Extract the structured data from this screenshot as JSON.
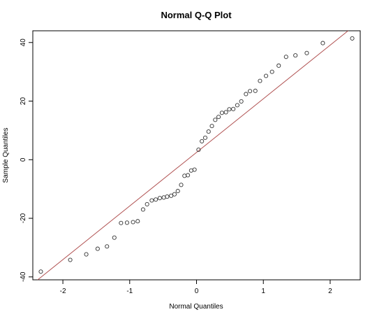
{
  "chart_data": {
    "type": "scatter",
    "title": "Normal Q-Q Plot",
    "xlabel": "Normal Quantiles",
    "ylabel": "Sample Quantiles",
    "xlim": [
      -2.45,
      2.45
    ],
    "ylim": [
      -41,
      44
    ],
    "x_ticks": [
      -2,
      -1,
      0,
      1,
      2
    ],
    "y_ticks": [
      -40,
      -20,
      0,
      20,
      40
    ],
    "grid": false,
    "reference_line": {
      "color": "#b05050",
      "intercept": 2.5,
      "slope": 18.3
    },
    "point_color": "#333333",
    "points": [
      {
        "x": -2.33,
        "y": -38.2
      },
      {
        "x": -1.89,
        "y": -34.2
      },
      {
        "x": -1.65,
        "y": -32.3
      },
      {
        "x": -1.48,
        "y": -30.4
      },
      {
        "x": -1.34,
        "y": -29.6
      },
      {
        "x": -1.23,
        "y": -26.6
      },
      {
        "x": -1.13,
        "y": -21.6
      },
      {
        "x": -1.04,
        "y": -21.5
      },
      {
        "x": -0.95,
        "y": -21.3
      },
      {
        "x": -0.88,
        "y": -21.0
      },
      {
        "x": -0.8,
        "y": -17.0
      },
      {
        "x": -0.74,
        "y": -15.2
      },
      {
        "x": -0.67,
        "y": -13.9
      },
      {
        "x": -0.61,
        "y": -13.6
      },
      {
        "x": -0.55,
        "y": -13.1
      },
      {
        "x": -0.49,
        "y": -12.9
      },
      {
        "x": -0.44,
        "y": -12.6
      },
      {
        "x": -0.38,
        "y": -12.3
      },
      {
        "x": -0.33,
        "y": -11.8
      },
      {
        "x": -0.28,
        "y": -10.7
      },
      {
        "x": -0.23,
        "y": -8.6
      },
      {
        "x": -0.18,
        "y": -5.5
      },
      {
        "x": -0.13,
        "y": -5.3
      },
      {
        "x": -0.08,
        "y": -3.7
      },
      {
        "x": -0.03,
        "y": -3.4
      },
      {
        "x": 0.03,
        "y": 3.4
      },
      {
        "x": 0.08,
        "y": 6.3
      },
      {
        "x": 0.13,
        "y": 7.5
      },
      {
        "x": 0.18,
        "y": 9.6
      },
      {
        "x": 0.23,
        "y": 11.5
      },
      {
        "x": 0.28,
        "y": 13.6
      },
      {
        "x": 0.33,
        "y": 14.6
      },
      {
        "x": 0.38,
        "y": 16.0
      },
      {
        "x": 0.44,
        "y": 16.2
      },
      {
        "x": 0.49,
        "y": 17.2
      },
      {
        "x": 0.55,
        "y": 17.3
      },
      {
        "x": 0.61,
        "y": 18.6
      },
      {
        "x": 0.67,
        "y": 19.9
      },
      {
        "x": 0.74,
        "y": 22.4
      },
      {
        "x": 0.8,
        "y": 23.4
      },
      {
        "x": 0.88,
        "y": 23.5
      },
      {
        "x": 0.95,
        "y": 26.9
      },
      {
        "x": 1.04,
        "y": 28.6
      },
      {
        "x": 1.13,
        "y": 30.0
      },
      {
        "x": 1.23,
        "y": 32.1
      },
      {
        "x": 1.34,
        "y": 35.1
      },
      {
        "x": 1.48,
        "y": 35.6
      },
      {
        "x": 1.65,
        "y": 36.4
      },
      {
        "x": 1.89,
        "y": 39.8
      },
      {
        "x": 2.33,
        "y": 41.4
      }
    ]
  }
}
